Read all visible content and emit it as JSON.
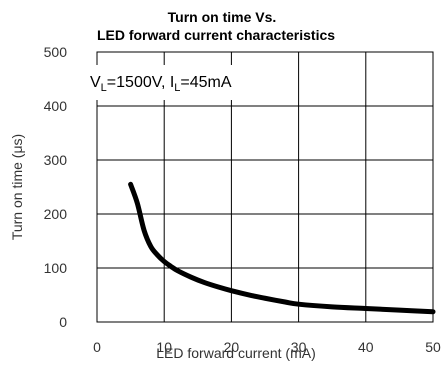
{
  "chart_data": {
    "type": "line",
    "title_line1": "Turn on time Vs.",
    "title_line2": "LED forward current characteristics",
    "xlabel": "LED forward current (mA)",
    "ylabel": "Turn on time (μs)",
    "xlim": [
      0,
      50
    ],
    "ylim": [
      0,
      500
    ],
    "xticks": [
      0,
      10,
      20,
      30,
      40,
      50
    ],
    "yticks": [
      0,
      100,
      200,
      300,
      400,
      500
    ],
    "grid": true,
    "annotation": {
      "v_main": "V",
      "v_sub": "L",
      "v_value": "=1500V, ",
      "i_main": "I",
      "i_sub": "L",
      "i_value": "=45mA"
    },
    "series": [
      {
        "color": "#000000",
        "x": [
          5,
          6,
          7,
          8,
          9,
          10,
          11,
          12,
          14,
          16,
          18,
          20,
          23,
          25,
          28,
          30,
          35,
          40,
          45,
          50
        ],
        "y": [
          255,
          220,
          170,
          140,
          124,
          112,
          103,
          95,
          83,
          73,
          65,
          58,
          49,
          44,
          37,
          33,
          28,
          25,
          22,
          19
        ]
      }
    ]
  }
}
